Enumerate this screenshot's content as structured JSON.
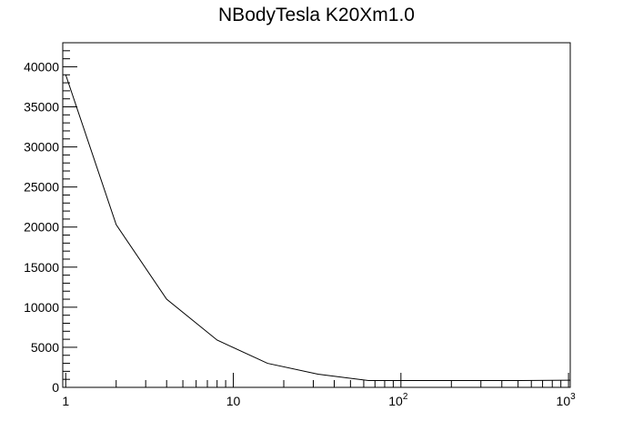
{
  "chart_data": {
    "type": "line",
    "title": "NBodyTesla K20Xm1.0",
    "xlabel": "",
    "ylabel": "",
    "x_scale": "log",
    "xlim": [
      0.96,
      1024
    ],
    "ylim": [
      0,
      43000
    ],
    "grid": false,
    "y_ticks": [
      "0",
      "5000",
      "10000",
      "15000",
      "20000",
      "25000",
      "30000",
      "35000",
      "40000"
    ],
    "x_tick_labels": [
      {
        "value": 1,
        "label": "1",
        "exp": ""
      },
      {
        "value": 10,
        "label": "10",
        "exp": ""
      },
      {
        "value": 100,
        "label": "10",
        "exp": "2"
      },
      {
        "value": 1000,
        "label": "10",
        "exp": "3"
      }
    ],
    "series": [
      {
        "x": [
          1,
          2,
          4,
          8,
          16,
          32,
          64,
          128,
          256,
          512,
          1024
        ],
        "y": [
          39000,
          20300,
          11000,
          5900,
          3000,
          1650,
          850,
          850,
          850,
          850,
          900
        ]
      }
    ]
  }
}
